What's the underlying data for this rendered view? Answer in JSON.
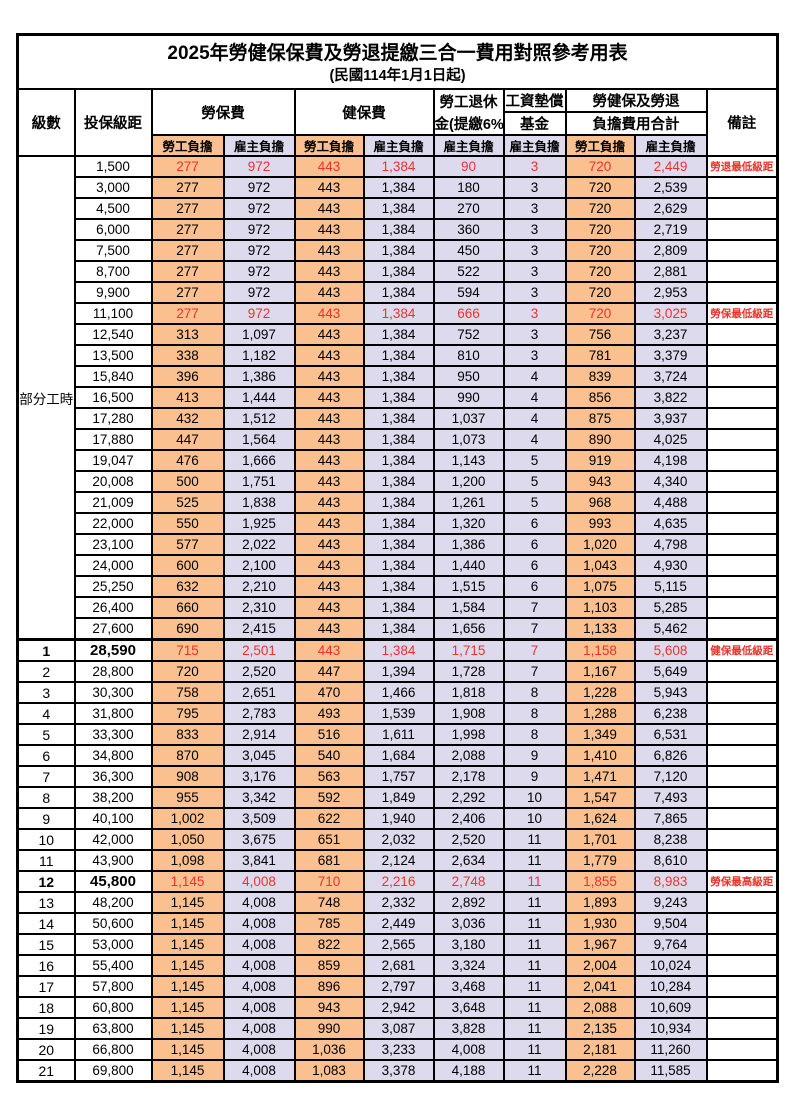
{
  "title": "2025年勞健保保費及勞退提繳三合一費用對照參考用表",
  "subtitle": "(民國114年1月1日起)",
  "columns": {
    "level": "級數",
    "bracket": "投保級距",
    "labor_group": "勞保費",
    "health_group": "健保費",
    "pension_l1": "勞工退休",
    "pension_l2": "金(提繳6%)",
    "fund_l1": "工資墊償",
    "fund_l2": "基金",
    "total_l1": "勞健保及勞退",
    "total_l2": "負擔費用合計",
    "note": "備註",
    "employee": "勞工負擔",
    "employer": "雇主負擔"
  },
  "section_label": "部分工時",
  "colors": {
    "employee_bg": "#FAC08F",
    "employer_bg": "#DDDAEE",
    "highlight_text": "#EE312B",
    "border": "#000000"
  },
  "part_time_rows": [
    {
      "bracket": "1,500",
      "values": [
        "277",
        "972",
        "443",
        "1,384",
        "90",
        "3",
        "720",
        "2,449"
      ],
      "note": "勞退最低級距",
      "highlight": true
    },
    {
      "bracket": "3,000",
      "values": [
        "277",
        "972",
        "443",
        "1,384",
        "180",
        "3",
        "720",
        "2,539"
      ],
      "note": "",
      "highlight": false
    },
    {
      "bracket": "4,500",
      "values": [
        "277",
        "972",
        "443",
        "1,384",
        "270",
        "3",
        "720",
        "2,629"
      ],
      "note": "",
      "highlight": false
    },
    {
      "bracket": "6,000",
      "values": [
        "277",
        "972",
        "443",
        "1,384",
        "360",
        "3",
        "720",
        "2,719"
      ],
      "note": "",
      "highlight": false
    },
    {
      "bracket": "7,500",
      "values": [
        "277",
        "972",
        "443",
        "1,384",
        "450",
        "3",
        "720",
        "2,809"
      ],
      "note": "",
      "highlight": false
    },
    {
      "bracket": "8,700",
      "values": [
        "277",
        "972",
        "443",
        "1,384",
        "522",
        "3",
        "720",
        "2,881"
      ],
      "note": "",
      "highlight": false
    },
    {
      "bracket": "9,900",
      "values": [
        "277",
        "972",
        "443",
        "1,384",
        "594",
        "3",
        "720",
        "2,953"
      ],
      "note": "",
      "highlight": false
    },
    {
      "bracket": "11,100",
      "values": [
        "277",
        "972",
        "443",
        "1,384",
        "666",
        "3",
        "720",
        "3,025"
      ],
      "note": "勞保最低級距",
      "highlight": true
    },
    {
      "bracket": "12,540",
      "values": [
        "313",
        "1,097",
        "443",
        "1,384",
        "752",
        "3",
        "756",
        "3,237"
      ],
      "note": "",
      "highlight": false
    },
    {
      "bracket": "13,500",
      "values": [
        "338",
        "1,182",
        "443",
        "1,384",
        "810",
        "3",
        "781",
        "3,379"
      ],
      "note": "",
      "highlight": false
    },
    {
      "bracket": "15,840",
      "values": [
        "396",
        "1,386",
        "443",
        "1,384",
        "950",
        "4",
        "839",
        "3,724"
      ],
      "note": "",
      "highlight": false
    },
    {
      "bracket": "16,500",
      "values": [
        "413",
        "1,444",
        "443",
        "1,384",
        "990",
        "4",
        "856",
        "3,822"
      ],
      "note": "",
      "highlight": false
    },
    {
      "bracket": "17,280",
      "values": [
        "432",
        "1,512",
        "443",
        "1,384",
        "1,037",
        "4",
        "875",
        "3,937"
      ],
      "note": "",
      "highlight": false
    },
    {
      "bracket": "17,880",
      "values": [
        "447",
        "1,564",
        "443",
        "1,384",
        "1,073",
        "4",
        "890",
        "4,025"
      ],
      "note": "",
      "highlight": false
    },
    {
      "bracket": "19,047",
      "values": [
        "476",
        "1,666",
        "443",
        "1,384",
        "1,143",
        "5",
        "919",
        "4,198"
      ],
      "note": "",
      "highlight": false
    },
    {
      "bracket": "20,008",
      "values": [
        "500",
        "1,751",
        "443",
        "1,384",
        "1,200",
        "5",
        "943",
        "4,340"
      ],
      "note": "",
      "highlight": false
    },
    {
      "bracket": "21,009",
      "values": [
        "525",
        "1,838",
        "443",
        "1,384",
        "1,261",
        "5",
        "968",
        "4,488"
      ],
      "note": "",
      "highlight": false
    },
    {
      "bracket": "22,000",
      "values": [
        "550",
        "1,925",
        "443",
        "1,384",
        "1,320",
        "6",
        "993",
        "4,635"
      ],
      "note": "",
      "highlight": false
    },
    {
      "bracket": "23,100",
      "values": [
        "577",
        "2,022",
        "443",
        "1,384",
        "1,386",
        "6",
        "1,020",
        "4,798"
      ],
      "note": "",
      "highlight": false
    },
    {
      "bracket": "24,000",
      "values": [
        "600",
        "2,100",
        "443",
        "1,384",
        "1,440",
        "6",
        "1,043",
        "4,930"
      ],
      "note": "",
      "highlight": false
    },
    {
      "bracket": "25,250",
      "values": [
        "632",
        "2,210",
        "443",
        "1,384",
        "1,515",
        "6",
        "1,075",
        "5,115"
      ],
      "note": "",
      "highlight": false
    },
    {
      "bracket": "26,400",
      "values": [
        "660",
        "2,310",
        "443",
        "1,384",
        "1,584",
        "7",
        "1,103",
        "5,285"
      ],
      "note": "",
      "highlight": false
    },
    {
      "bracket": "27,600",
      "values": [
        "690",
        "2,415",
        "443",
        "1,384",
        "1,656",
        "7",
        "1,133",
        "5,462"
      ],
      "note": "",
      "highlight": false
    }
  ],
  "level_rows": [
    {
      "level": "1",
      "bracket": "28,590",
      "values": [
        "715",
        "2,501",
        "443",
        "1,384",
        "1,715",
        "7",
        "1,158",
        "5,608"
      ],
      "note": "健保最低級距",
      "highlight": true,
      "emphasis": true
    },
    {
      "level": "2",
      "bracket": "28,800",
      "values": [
        "720",
        "2,520",
        "447",
        "1,394",
        "1,728",
        "7",
        "1,167",
        "5,649"
      ],
      "note": "",
      "highlight": false,
      "emphasis": false
    },
    {
      "level": "3",
      "bracket": "30,300",
      "values": [
        "758",
        "2,651",
        "470",
        "1,466",
        "1,818",
        "8",
        "1,228",
        "5,943"
      ],
      "note": "",
      "highlight": false,
      "emphasis": false
    },
    {
      "level": "4",
      "bracket": "31,800",
      "values": [
        "795",
        "2,783",
        "493",
        "1,539",
        "1,908",
        "8",
        "1,288",
        "6,238"
      ],
      "note": "",
      "highlight": false,
      "emphasis": false
    },
    {
      "level": "5",
      "bracket": "33,300",
      "values": [
        "833",
        "2,914",
        "516",
        "1,611",
        "1,998",
        "8",
        "1,349",
        "6,531"
      ],
      "note": "",
      "highlight": false,
      "emphasis": false
    },
    {
      "level": "6",
      "bracket": "34,800",
      "values": [
        "870",
        "3,045",
        "540",
        "1,684",
        "2,088",
        "9",
        "1,410",
        "6,826"
      ],
      "note": "",
      "highlight": false,
      "emphasis": false
    },
    {
      "level": "7",
      "bracket": "36,300",
      "values": [
        "908",
        "3,176",
        "563",
        "1,757",
        "2,178",
        "9",
        "1,471",
        "7,120"
      ],
      "note": "",
      "highlight": false,
      "emphasis": false
    },
    {
      "level": "8",
      "bracket": "38,200",
      "values": [
        "955",
        "3,342",
        "592",
        "1,849",
        "2,292",
        "10",
        "1,547",
        "7,493"
      ],
      "note": "",
      "highlight": false,
      "emphasis": false
    },
    {
      "level": "9",
      "bracket": "40,100",
      "values": [
        "1,002",
        "3,509",
        "622",
        "1,940",
        "2,406",
        "10",
        "1,624",
        "7,865"
      ],
      "note": "",
      "highlight": false,
      "emphasis": false
    },
    {
      "level": "10",
      "bracket": "42,000",
      "values": [
        "1,050",
        "3,675",
        "651",
        "2,032",
        "2,520",
        "11",
        "1,701",
        "8,238"
      ],
      "note": "",
      "highlight": false,
      "emphasis": false
    },
    {
      "level": "11",
      "bracket": "43,900",
      "values": [
        "1,098",
        "3,841",
        "681",
        "2,124",
        "2,634",
        "11",
        "1,779",
        "8,610"
      ],
      "note": "",
      "highlight": false,
      "emphasis": false
    },
    {
      "level": "12",
      "bracket": "45,800",
      "values": [
        "1,145",
        "4,008",
        "710",
        "2,216",
        "2,748",
        "11",
        "1,855",
        "8,983"
      ],
      "note": "勞保最高級距",
      "highlight": true,
      "emphasis": true
    },
    {
      "level": "13",
      "bracket": "48,200",
      "values": [
        "1,145",
        "4,008",
        "748",
        "2,332",
        "2,892",
        "11",
        "1,893",
        "9,243"
      ],
      "note": "",
      "highlight": false,
      "emphasis": false
    },
    {
      "level": "14",
      "bracket": "50,600",
      "values": [
        "1,145",
        "4,008",
        "785",
        "2,449",
        "3,036",
        "11",
        "1,930",
        "9,504"
      ],
      "note": "",
      "highlight": false,
      "emphasis": false
    },
    {
      "level": "15",
      "bracket": "53,000",
      "values": [
        "1,145",
        "4,008",
        "822",
        "2,565",
        "3,180",
        "11",
        "1,967",
        "9,764"
      ],
      "note": "",
      "highlight": false,
      "emphasis": false
    },
    {
      "level": "16",
      "bracket": "55,400",
      "values": [
        "1,145",
        "4,008",
        "859",
        "2,681",
        "3,324",
        "11",
        "2,004",
        "10,024"
      ],
      "note": "",
      "highlight": false,
      "emphasis": false
    },
    {
      "level": "17",
      "bracket": "57,800",
      "values": [
        "1,145",
        "4,008",
        "896",
        "2,797",
        "3,468",
        "11",
        "2,041",
        "10,284"
      ],
      "note": "",
      "highlight": false,
      "emphasis": false
    },
    {
      "level": "18",
      "bracket": "60,800",
      "values": [
        "1,145",
        "4,008",
        "943",
        "2,942",
        "3,648",
        "11",
        "2,088",
        "10,609"
      ],
      "note": "",
      "highlight": false,
      "emphasis": false
    },
    {
      "level": "19",
      "bracket": "63,800",
      "values": [
        "1,145",
        "4,008",
        "990",
        "3,087",
        "3,828",
        "11",
        "2,135",
        "10,934"
      ],
      "note": "",
      "highlight": false,
      "emphasis": false
    },
    {
      "level": "20",
      "bracket": "66,800",
      "values": [
        "1,145",
        "4,008",
        "1,036",
        "3,233",
        "4,008",
        "11",
        "2,181",
        "11,260"
      ],
      "note": "",
      "highlight": false,
      "emphasis": false
    },
    {
      "level": "21",
      "bracket": "69,800",
      "values": [
        "1,145",
        "4,008",
        "1,083",
        "3,378",
        "4,188",
        "11",
        "2,228",
        "11,585"
      ],
      "note": "",
      "highlight": false,
      "emphasis": false
    }
  ]
}
